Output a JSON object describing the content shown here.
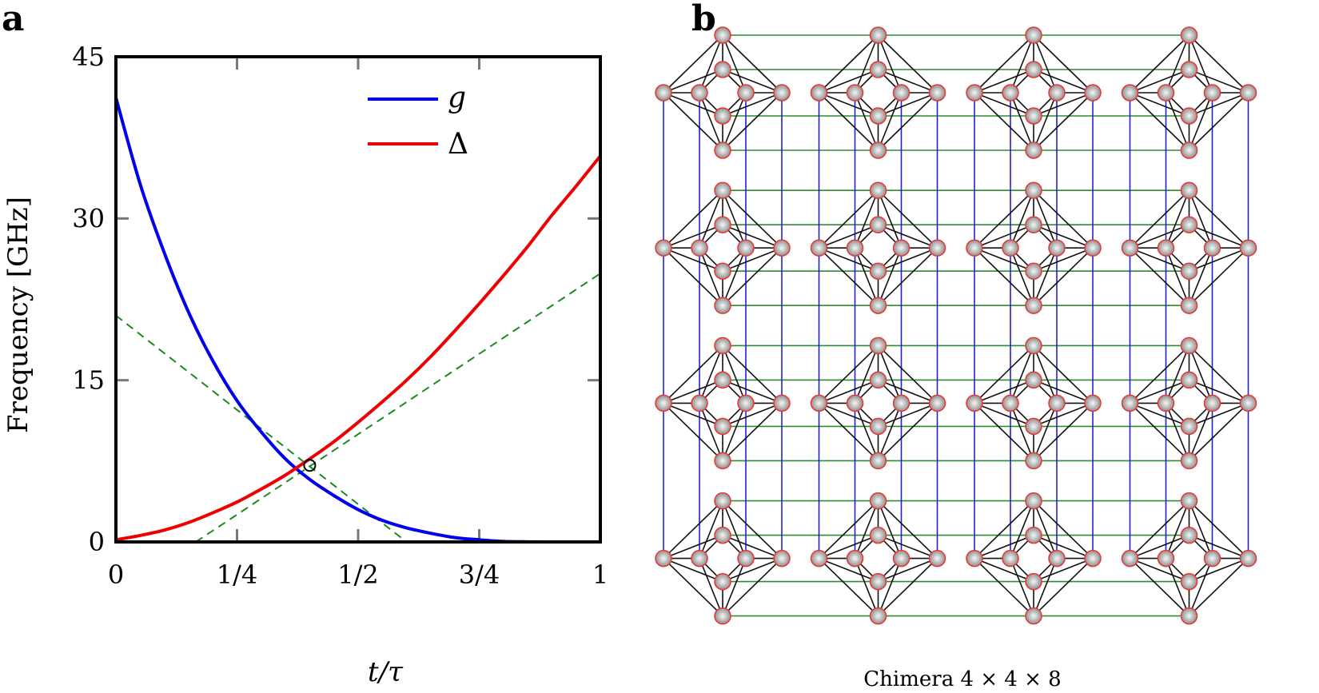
{
  "chart_data": [
    {
      "panel": "a",
      "type": "line",
      "xlabel": "t/τ",
      "ylabel": "Frequency [GHz]",
      "xlim": [
        0,
        1
      ],
      "ylim": [
        0,
        45
      ],
      "xticks": [
        0,
        0.25,
        0.5,
        0.75,
        1
      ],
      "xtick_labels": [
        "0",
        "1/4",
        "1/2",
        "3/4",
        "1"
      ],
      "yticks": [
        0,
        15,
        30,
        45
      ],
      "ytick_labels": [
        "0",
        "15",
        "30",
        "45"
      ],
      "legend_position": "top-right",
      "series": [
        {
          "name": "g",
          "color": "#0000ee",
          "x": [
            0,
            0.05,
            0.1,
            0.15,
            0.2,
            0.25,
            0.3,
            0.35,
            0.4,
            0.45,
            0.5,
            0.55,
            0.6,
            0.65,
            0.7,
            0.75,
            0.8,
            0.85,
            0.9,
            0.95,
            1
          ],
          "y": [
            41.2,
            33.2,
            26.8,
            21.3,
            16.8,
            13.1,
            10.2,
            7.7,
            5.8,
            4.3,
            3.0,
            2.0,
            1.3,
            0.8,
            0.4,
            0.2,
            0.05,
            0.01,
            0,
            0,
            0
          ]
        },
        {
          "name": "Δ",
          "color": "#ee0000",
          "x": [
            0,
            0.05,
            0.1,
            0.15,
            0.2,
            0.25,
            0.3,
            0.35,
            0.4,
            0.45,
            0.5,
            0.55,
            0.6,
            0.65,
            0.7,
            0.75,
            0.8,
            0.85,
            0.9,
            0.95,
            1
          ],
          "y": [
            0.2,
            0.6,
            1.1,
            1.8,
            2.7,
            3.7,
            4.9,
            6.2,
            7.7,
            9.3,
            11.1,
            13.0,
            15.0,
            17.2,
            19.6,
            22.1,
            24.7,
            27.4,
            30.3,
            33.0,
            35.8
          ]
        }
      ],
      "tangent_lines": [
        {
          "color": "#1a8a1a",
          "x": [
            0,
            0.6
          ],
          "y": [
            21.0,
            0
          ]
        },
        {
          "color": "#1a8a1a",
          "x": [
            0.165,
            1
          ],
          "y": [
            0,
            24.9
          ]
        }
      ],
      "marker": {
        "x": 0.4,
        "y": 7.1
      }
    },
    {
      "panel": "b",
      "type": "graph",
      "caption": "Chimera 4 × 4 × 8",
      "grid_rows": 4,
      "grid_cols": 4,
      "qubits_per_cell": 8,
      "colors": {
        "intra_cell": "#111111",
        "vertical_coupler": "#2222cc",
        "horizontal_coupler": "#2e8b2e",
        "node_stroke": "#ee3333",
        "node_fill_center": "#f4f4f4",
        "node_fill_edge": "#9a9a9a"
      }
    }
  ],
  "legend": {
    "g": "g",
    "delta": "Δ"
  },
  "labels": {
    "panel_a": "a",
    "panel_b": "b"
  }
}
